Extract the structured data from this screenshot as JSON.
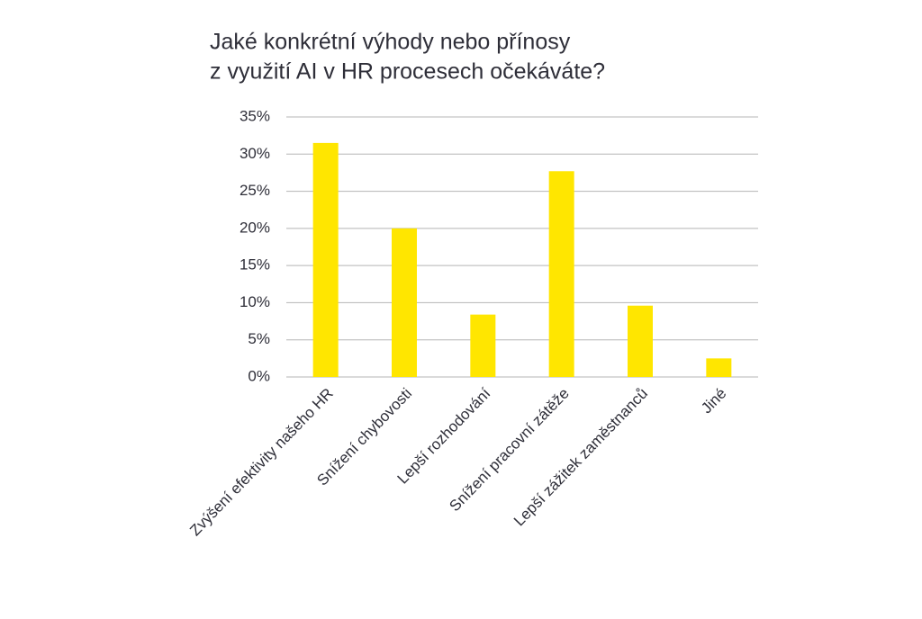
{
  "chart_data": {
    "type": "bar",
    "title": [
      "Jaké konkrétní výhody nebo přínosy",
      "z využití AI v HR procesech očekáváte?"
    ],
    "categories": [
      "Zvýšení efektivity našeho HR",
      "Snížení chybovosti",
      "Lepší rozhodování",
      "Snížení pracovní zátěže",
      "Lepší zážitek zaměstnanců",
      "Jiné"
    ],
    "values": [
      31.5,
      20,
      8.4,
      27.7,
      9.6,
      2.5
    ],
    "color": "#ffe600",
    "ylim": [
      0,
      35
    ],
    "yticks": [
      {
        "value": 0,
        "label": "0%"
      },
      {
        "value": 5,
        "label": "5%"
      },
      {
        "value": 10,
        "label": "10%"
      },
      {
        "value": 15,
        "label": "15%"
      },
      {
        "value": 20,
        "label": "20%"
      },
      {
        "value": 25,
        "label": "25%"
      },
      {
        "value": 30,
        "label": "30%"
      },
      {
        "value": 35,
        "label": "35%"
      }
    ],
    "grid": true
  }
}
